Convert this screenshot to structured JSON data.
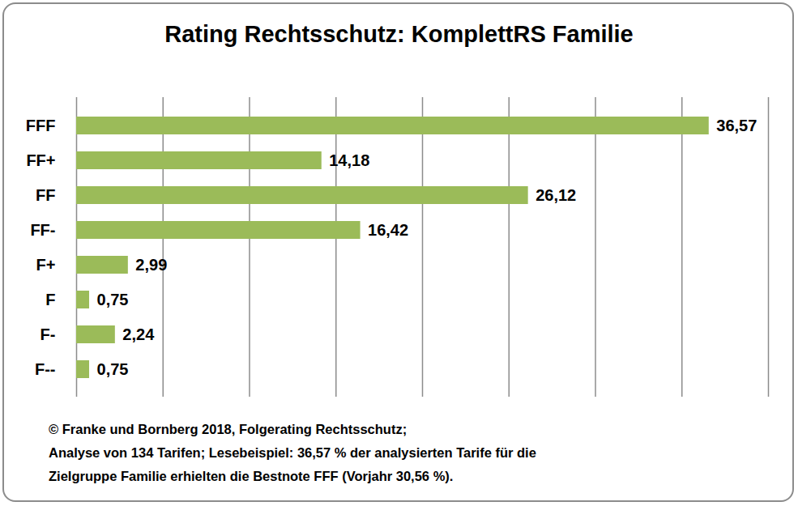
{
  "chart_data": {
    "type": "bar",
    "title": "Rating Rechtsschutz: KomplettRS Familie",
    "orientation": "horizontal",
    "categories": [
      "FFF",
      "FF+",
      "FF",
      "FF-",
      "F+",
      "F",
      "F-",
      "F--"
    ],
    "values": [
      36.57,
      14.18,
      26.12,
      16.42,
      2.99,
      0.75,
      2.24,
      0.75
    ],
    "value_labels": [
      "36,57",
      "14,18",
      "26,12",
      "16,42",
      "2,99",
      "0,75",
      "2,24",
      "0,75"
    ],
    "data_labels": true,
    "color": "#9bbb59",
    "xlim": [
      0,
      40
    ],
    "xticks": [
      0,
      5,
      10,
      15,
      20,
      25,
      30,
      35,
      40
    ],
    "grid": true,
    "tick_labels": "y",
    "caption": [
      "© Franke und Bornberg 2018, Folgerating Rechtsschutz;",
      "Analyse von 134 Tarifen; Lesebeispiel: 36,57 % der analysierten Tarife für die",
      "Zielgruppe Familie erhielten die Bestnote FFF (Vorjahr 30,56 %)."
    ]
  }
}
